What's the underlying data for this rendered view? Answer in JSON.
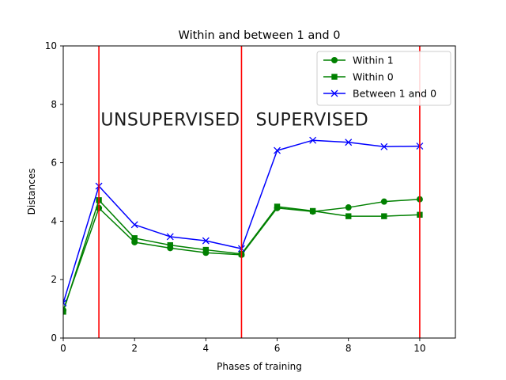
{
  "chart_data": {
    "type": "line",
    "title": "Within and between 1 and 0",
    "xlabel": "Phases of training",
    "ylabel": "Distances",
    "xlim": [
      0,
      11
    ],
    "ylim": [
      0,
      10
    ],
    "xticks": [
      0,
      2,
      4,
      6,
      8,
      10
    ],
    "yticks": [
      0,
      2,
      4,
      6,
      8,
      10
    ],
    "grid": false,
    "legend_position": "top-right",
    "x": [
      0,
      1,
      2,
      3,
      4,
      5,
      6,
      7,
      8,
      9,
      10
    ],
    "series": [
      {
        "name": "Within 1",
        "color": "#008000",
        "marker": "circle",
        "values": [
          0.95,
          4.45,
          3.28,
          3.08,
          2.92,
          2.85,
          4.45,
          4.33,
          4.47,
          4.67,
          4.75
        ]
      },
      {
        "name": "Within 0",
        "color": "#008000",
        "marker": "square",
        "values": [
          0.9,
          4.72,
          3.42,
          3.18,
          3.02,
          2.88,
          4.5,
          4.35,
          4.17,
          4.17,
          4.22
        ]
      },
      {
        "name": "Between 1 and 0",
        "color": "#0000ff",
        "marker": "x",
        "values": [
          1.2,
          5.2,
          3.88,
          3.47,
          3.33,
          3.06,
          6.42,
          6.77,
          6.7,
          6.55,
          6.57
        ]
      }
    ],
    "vlines": [
      {
        "x": 1,
        "color": "#ff0000"
      },
      {
        "x": 5,
        "color": "#ff0000"
      },
      {
        "x": 10,
        "color": "#ff0000"
      }
    ],
    "annotations": [
      {
        "text": "UNSUPERVISED",
        "x": 1.05,
        "y": 7.5
      },
      {
        "text": "SUPERVISED",
        "x": 5.4,
        "y": 7.5
      }
    ]
  }
}
